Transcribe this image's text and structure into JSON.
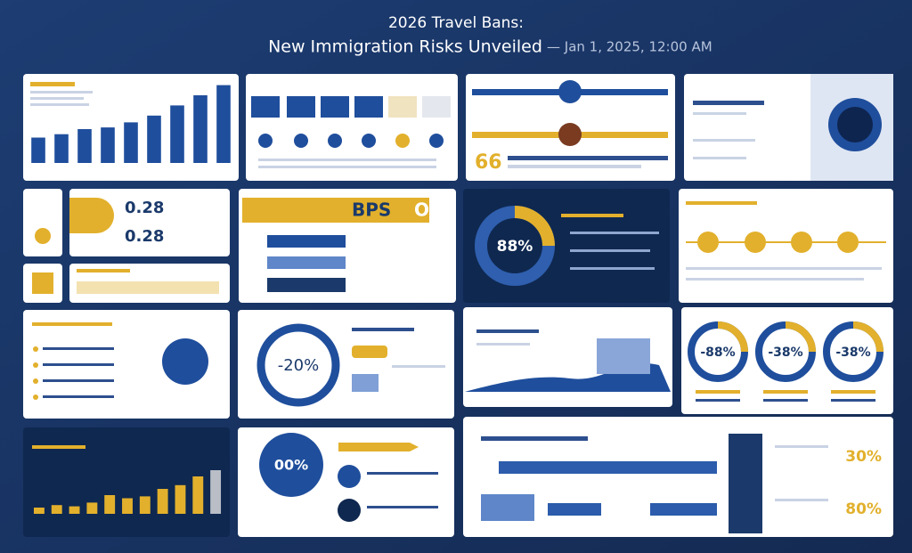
{
  "header": {
    "title_line1": "2026 Travel Bans:",
    "title_line2": "New Immigration Risks Unveiled",
    "timestamp": "— Jan 1, 2025, 12:00 AM"
  },
  "panels": {
    "top_bar_chart": {
      "values": [
        30,
        34,
        40,
        42,
        48,
        56,
        68,
        80,
        92
      ],
      "color": "#1f4e9c"
    },
    "slider_stat": "66",
    "stat_pair": [
      "0.28",
      "0.28"
    ],
    "banner": [
      "BPS",
      "OH"
    ],
    "dark_donut": "88%",
    "ring_large": "-20%",
    "rings_row": [
      "-88%",
      "-38%",
      "-38%"
    ],
    "circle_stat": "00%",
    "side_stats": [
      "30%",
      "80%"
    ],
    "bottom_bar_chart": {
      "values": [
        10,
        14,
        12,
        18,
        30,
        25,
        28,
        40,
        46,
        60,
        70
      ],
      "color": "#e2b02c"
    }
  }
}
